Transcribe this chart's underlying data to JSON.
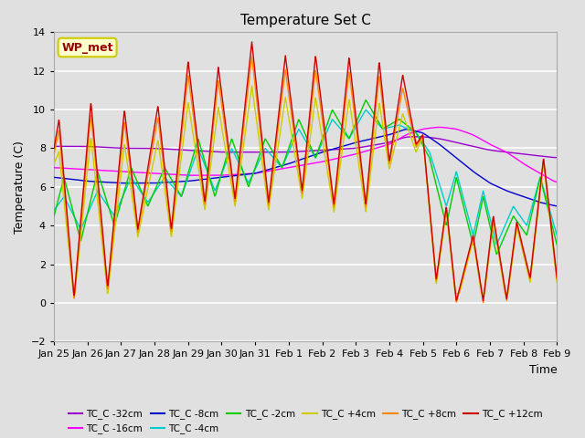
{
  "title": "Temperature Set C",
  "xlabel": "Time",
  "ylabel": "Temperature (C)",
  "ylim": [
    -2,
    14
  ],
  "yticks": [
    -2,
    0,
    2,
    4,
    6,
    8,
    10,
    12,
    14
  ],
  "background_color": "#e0e0e0",
  "annotation_text": "WP_met",
  "annotation_bg": "#ffffcc",
  "annotation_border": "#cccc00",
  "series": [
    {
      "label": "TC_C -32cm",
      "color": "#9900cc"
    },
    {
      "label": "TC_C -16cm",
      "color": "#ff00ff"
    },
    {
      "label": "TC_C -8cm",
      "color": "#0000cc"
    },
    {
      "label": "TC_C -4cm",
      "color": "#00cccc"
    },
    {
      "label": "TC_C -2cm",
      "color": "#00cc00"
    },
    {
      "label": "TC_C +4cm",
      "color": "#cccc00"
    },
    {
      "label": "TC_C +8cm",
      "color": "#ff8800"
    },
    {
      "label": "TC_C +12cm",
      "color": "#cc0000"
    }
  ],
  "xtick_labels": [
    "Jan 25",
    "Jan 26",
    "Jan 27",
    "Jan 28",
    "Jan 29",
    "Jan 30",
    "Jan 31",
    "Feb 1",
    "Feb 2",
    "Feb 3",
    "Feb 4",
    "Feb 5",
    "Feb 6",
    "Feb 7",
    "Feb 8",
    "Feb 9"
  ],
  "n_points": 1440
}
